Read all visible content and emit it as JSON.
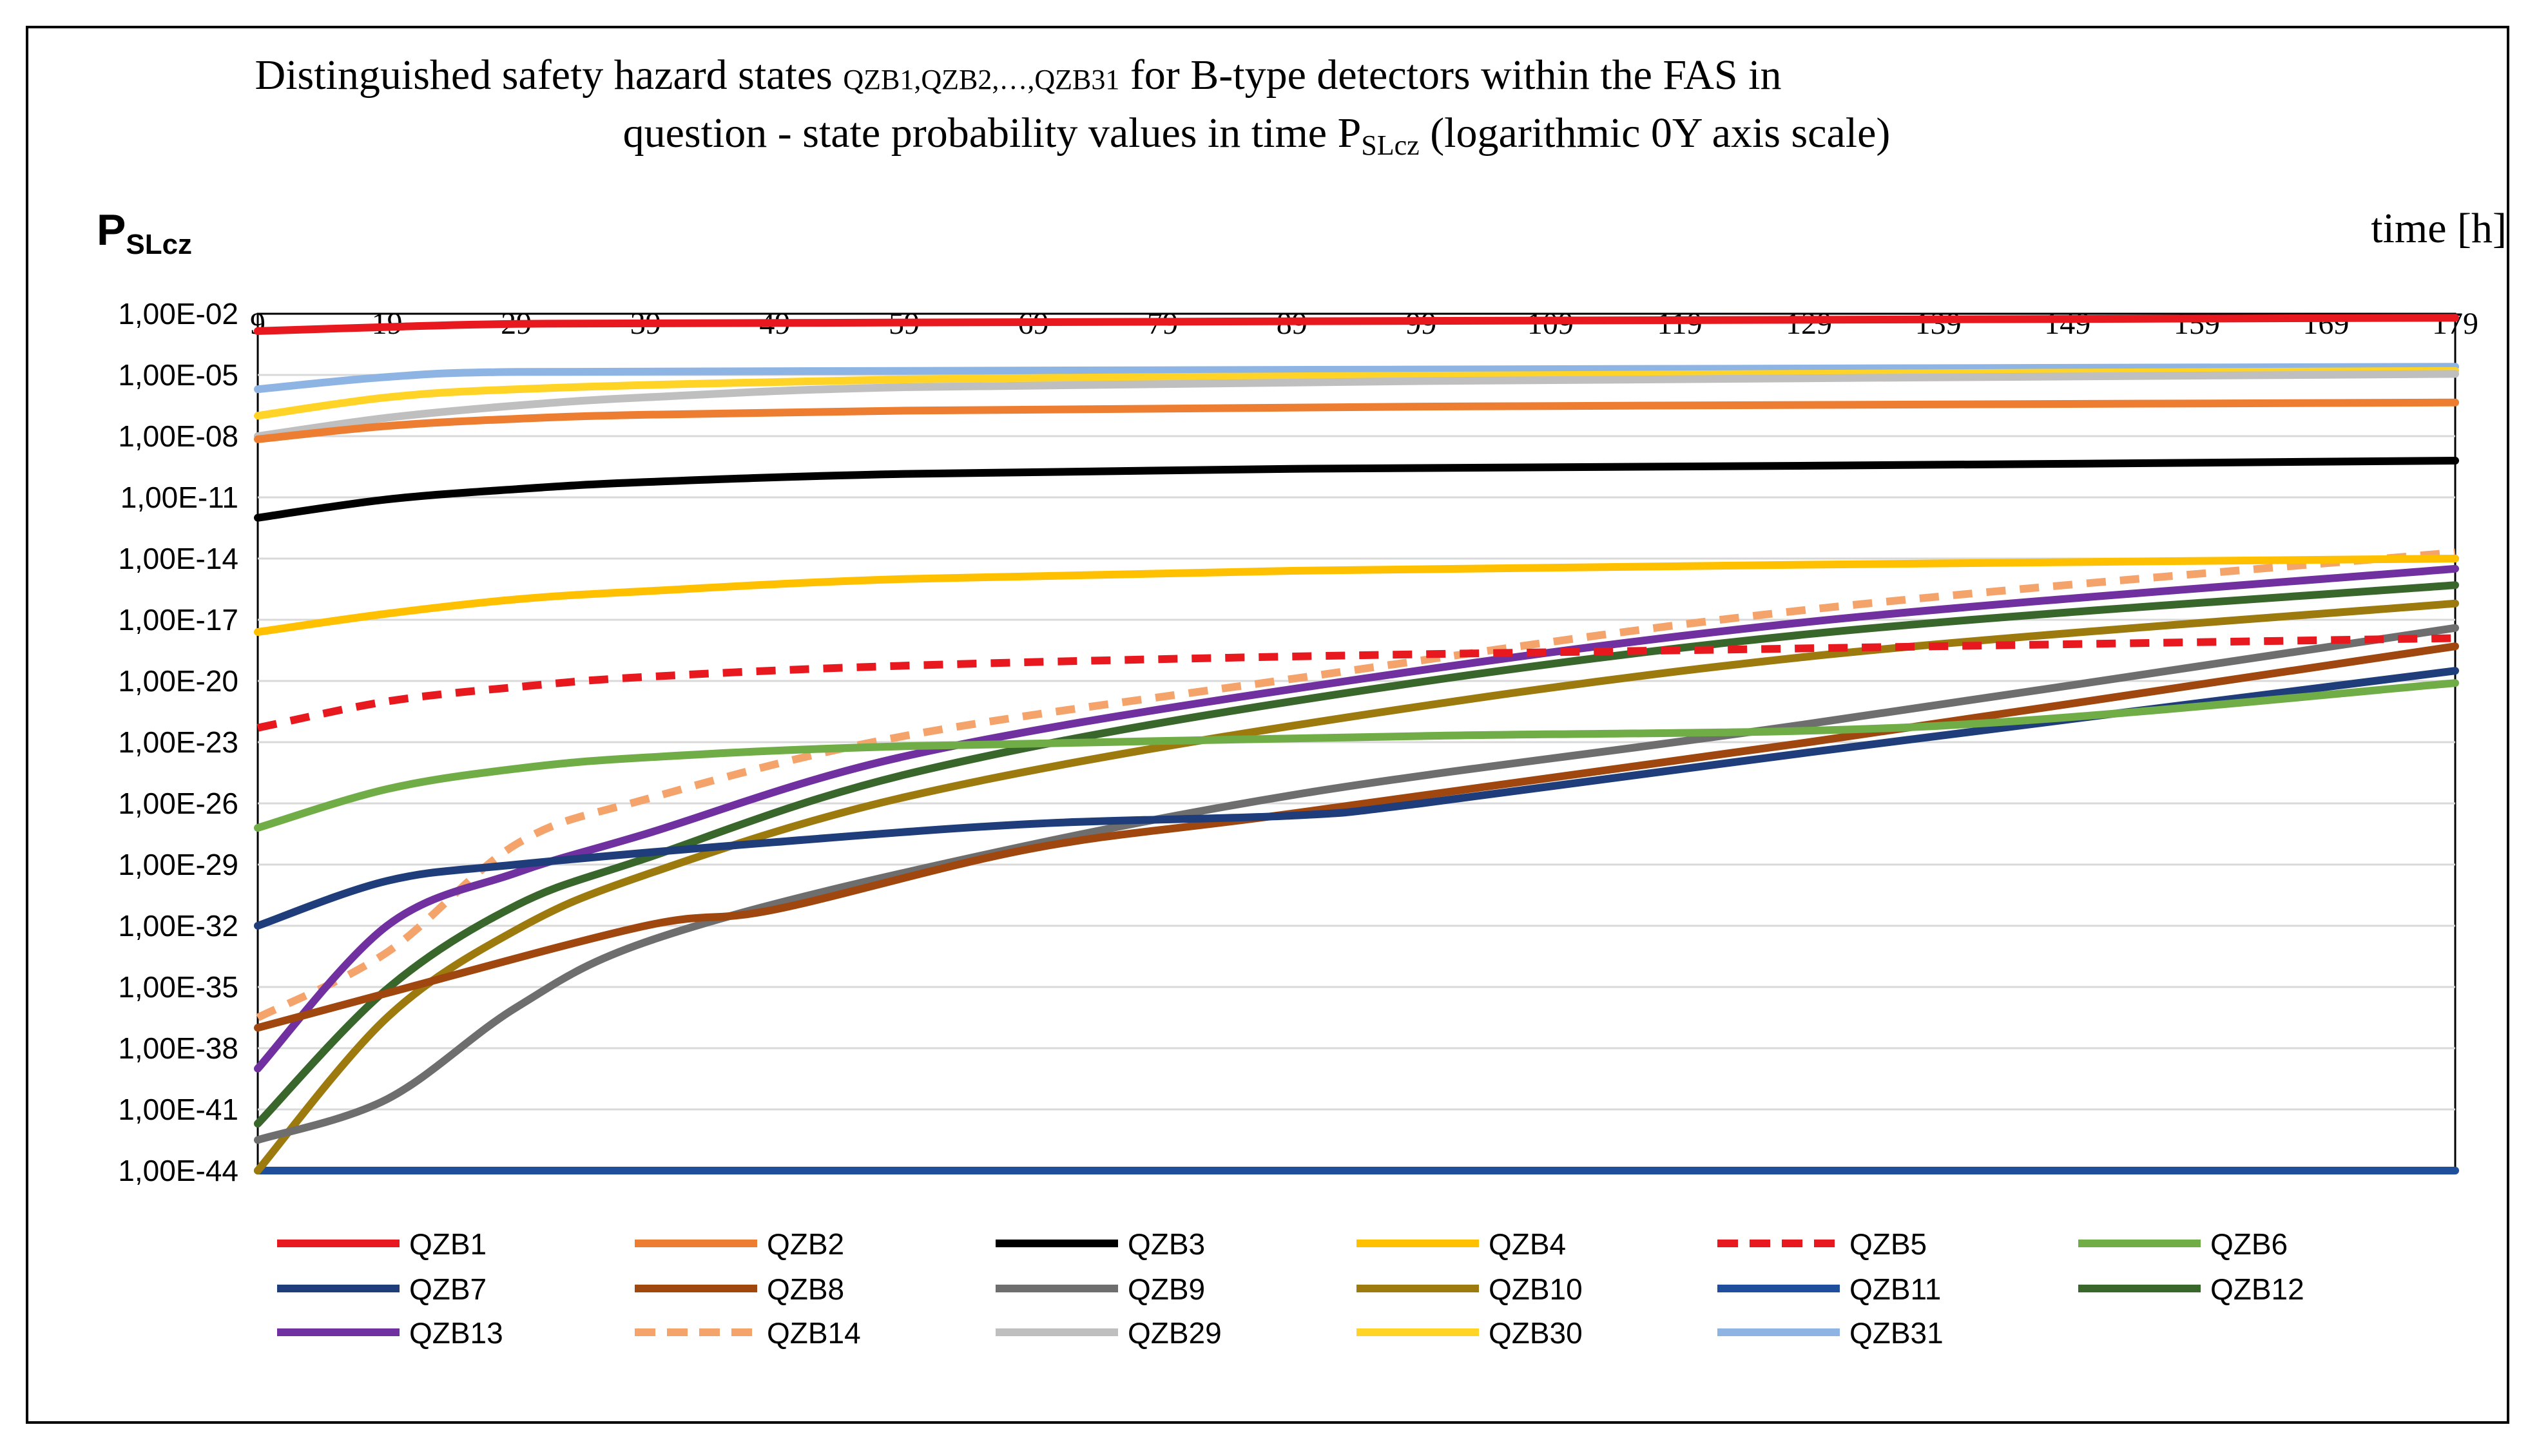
{
  "chart_data": {
    "type": "line",
    "title": {
      "line1_prefix": "Distinguished safety hazard states ",
      "q1": "QZB1,",
      "q2": "QZB2,…,",
      "q3": "QZB31",
      "line1_suffix": " for B-type detectors within the FAS in",
      "line2_prefix": "question - state probability values in time P",
      "line2_sub": "SLcz",
      "line2_suffix": " (logarithmic 0Y axis scale)"
    },
    "ylabel_main": "P",
    "ylabel_sub": "SLcz",
    "xlabel": "time [h]",
    "y_scale": "log",
    "ylim": [
      1e-44,
      0.01
    ],
    "xlim": [
      9,
      179
    ],
    "x_ticks": [
      "9",
      "19",
      "29",
      "39",
      "49",
      "59",
      "69",
      "79",
      "89",
      "99",
      "109",
      "119",
      "129",
      "139",
      "149",
      "159",
      "169",
      "179"
    ],
    "y_ticks": [
      "1,00E-02",
      "1,00E-05",
      "1,00E-08",
      "1,00E-11",
      "1,00E-14",
      "1,00E-17",
      "1,00E-20",
      "1,00E-23",
      "1,00E-26",
      "1,00E-29",
      "1,00E-32",
      "1,00E-35",
      "1,00E-38",
      "1,00E-41",
      "1,00E-44"
    ],
    "y_tick_exponents": [
      -2,
      -5,
      -8,
      -11,
      -14,
      -17,
      -20,
      -23,
      -26,
      -29,
      -32,
      -35,
      -38,
      -41,
      -44
    ],
    "grid": true,
    "legend_position": "bottom",
    "series": [
      {
        "name": "QZB1",
        "color": "#e8191e",
        "dashed": false,
        "x": [
          9,
          19,
          29,
          49,
          99,
          179
        ],
        "log10_y": [
          -2.85,
          -2.65,
          -2.5,
          -2.45,
          -2.35,
          -2.2
        ]
      },
      {
        "name": "QZB2",
        "color": "#ed7d31",
        "dashed": false,
        "x": [
          9,
          19,
          29,
          39,
          59,
          99,
          179
        ],
        "log10_y": [
          -8.15,
          -7.5,
          -7.15,
          -6.95,
          -6.75,
          -6.55,
          -6.35
        ]
      },
      {
        "name": "QZB3",
        "color": "#000000",
        "dashed": false,
        "x": [
          9,
          19,
          29,
          39,
          59,
          89,
          129,
          179
        ],
        "log10_y": [
          -12.0,
          -11.1,
          -10.6,
          -10.25,
          -9.85,
          -9.6,
          -9.45,
          -9.2
        ]
      },
      {
        "name": "QZB4",
        "color": "#ffc000",
        "dashed": false,
        "x": [
          9,
          19,
          29,
          39,
          59,
          89,
          129,
          179
        ],
        "log10_y": [
          -17.6,
          -16.7,
          -16.0,
          -15.6,
          -15.0,
          -14.6,
          -14.3,
          -14.0
        ]
      },
      {
        "name": "QZB5",
        "color": "#e8191e",
        "dashed": true,
        "x": [
          9,
          19,
          29,
          39,
          59,
          89,
          129,
          179
        ],
        "log10_y": [
          -22.3,
          -21.0,
          -20.3,
          -19.8,
          -19.25,
          -18.8,
          -18.4,
          -17.9
        ]
      },
      {
        "name": "QZB6",
        "color": "#70ad47",
        "dashed": false,
        "x": [
          9,
          19,
          29,
          39,
          59,
          99,
          139,
          179
        ],
        "log10_y": [
          -27.2,
          -25.3,
          -24.3,
          -23.75,
          -23.2,
          -22.7,
          -22.2,
          -20.1
        ]
      },
      {
        "name": "QZB7",
        "color": "#1f3d7a",
        "dashed": false,
        "x": [
          9,
          19,
          29,
          49,
          69,
          89,
          99,
          129,
          179
        ],
        "log10_y": [
          -32.0,
          -29.8,
          -29.0,
          -27.9,
          -27.0,
          -26.6,
          -26.0,
          -23.5,
          -19.5
        ]
      },
      {
        "name": "QZB8",
        "color": "#a0460f",
        "dashed": false,
        "x": [
          9,
          19,
          39,
          49,
          69,
          89,
          129,
          179
        ],
        "log10_y": [
          -37.0,
          -35.3,
          -32.0,
          -31.2,
          -28.2,
          -26.5,
          -23.0,
          -18.3
        ]
      },
      {
        "name": "QZB9",
        "color": "#6e6e6e",
        "dashed": false,
        "x": [
          9,
          19,
          29,
          39,
          59,
          89,
          129,
          179
        ],
        "log10_y": [
          -42.5,
          -40.5,
          -36.0,
          -32.8,
          -29.4,
          -25.6,
          -22.1,
          -17.4
        ]
      },
      {
        "name": "QZB10",
        "color": "#9c7a0e",
        "dashed": false,
        "x": [
          9,
          19,
          29,
          39,
          59,
          89,
          129,
          179
        ],
        "log10_y": [
          -44.0,
          -36.5,
          -32.2,
          -29.5,
          -25.7,
          -22.2,
          -18.8,
          -16.2
        ]
      },
      {
        "name": "QZB11",
        "color": "#1f4e9b",
        "dashed": false,
        "x": [
          9,
          179
        ],
        "log10_y": [
          -44.0,
          -44.0
        ]
      },
      {
        "name": "QZB12",
        "color": "#38662b",
        "dashed": false,
        "x": [
          9,
          19,
          29,
          39,
          59,
          89,
          129,
          179
        ],
        "log10_y": [
          -41.7,
          -35.1,
          -31.0,
          -28.7,
          -24.6,
          -21.0,
          -17.7,
          -15.3
        ]
      },
      {
        "name": "QZB13",
        "color": "#7030a0",
        "dashed": false,
        "x": [
          9,
          19,
          29,
          39,
          59,
          89,
          129,
          179
        ],
        "log10_y": [
          -39.0,
          -32.0,
          -29.4,
          -27.5,
          -23.7,
          -20.4,
          -17.1,
          -14.5
        ]
      },
      {
        "name": "QZB14",
        "color": "#f4a36b",
        "dashed": true,
        "x": [
          9,
          19,
          29,
          39,
          59,
          89,
          129,
          179
        ],
        "log10_y": [
          -36.5,
          -33.3,
          -28.0,
          -25.8,
          -22.7,
          -19.9,
          -16.5,
          -13.7
        ]
      },
      {
        "name": "QZB29",
        "color": "#bfbfbf",
        "dashed": false,
        "x": [
          9,
          19,
          29,
          39,
          59,
          99,
          179
        ],
        "log10_y": [
          -8.0,
          -7.1,
          -6.5,
          -6.1,
          -5.6,
          -5.3,
          -4.95
        ]
      },
      {
        "name": "QZB30",
        "color": "#ffd426",
        "dashed": false,
        "x": [
          9,
          19,
          29,
          49,
          79,
          179
        ],
        "log10_y": [
          -7.0,
          -6.1,
          -5.7,
          -5.35,
          -5.1,
          -4.8
        ]
      },
      {
        "name": "QZB31",
        "color": "#8eb4e3",
        "dashed": false,
        "x": [
          9,
          19,
          29,
          59,
          119,
          179
        ],
        "log10_y": [
          -5.7,
          -5.1,
          -4.85,
          -4.8,
          -4.7,
          -4.6
        ]
      }
    ]
  }
}
